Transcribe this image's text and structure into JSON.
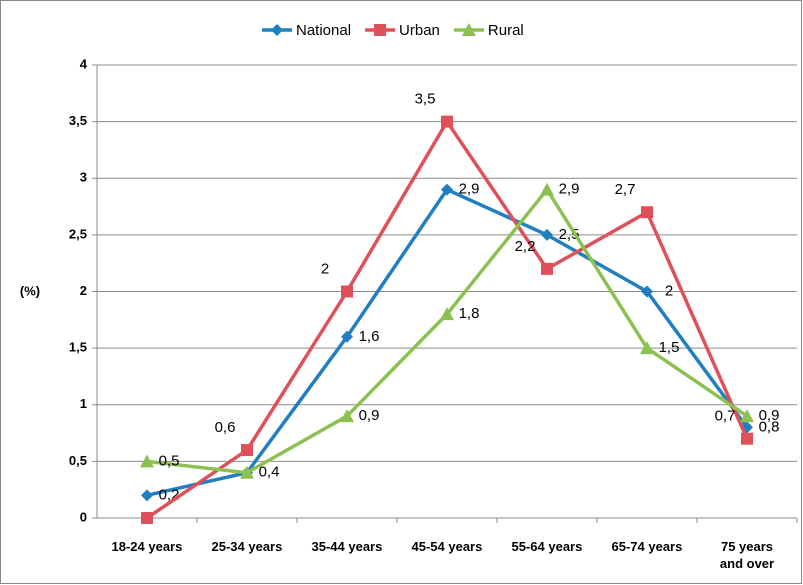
{
  "chart_data": {
    "type": "line",
    "y_label": "(%)",
    "categories": [
      "18-24 years",
      "25-34 years",
      "35-44 years",
      "45-54 years",
      "55-64 years",
      "65-74 years",
      "75 years and over"
    ],
    "series": [
      {
        "name": "National",
        "color": "#1f7fc0",
        "marker": "diamond",
        "values": [
          0.2,
          0.4,
          1.6,
          2.9,
          2.5,
          2,
          0.8
        ],
        "value_labels": [
          "0,2",
          "0,4",
          "1,6",
          "2,9",
          "2,5",
          "2",
          "0,8"
        ]
      },
      {
        "name": "Urban",
        "color": "#e0505a",
        "marker": "square",
        "values": [
          0,
          0.6,
          2,
          3.5,
          2.2,
          2.7,
          0.7
        ],
        "value_labels": [
          null,
          "0,6",
          "2",
          "3,5",
          "2,2",
          "2,7",
          "0,7"
        ]
      },
      {
        "name": "Rural",
        "color": "#8cc152",
        "marker": "triangle",
        "values": [
          0.5,
          0.4,
          0.9,
          1.8,
          2.9,
          1.5,
          0.9
        ],
        "value_labels": [
          "0,5",
          null,
          "0,9",
          "1,8",
          "2,9",
          "1,5",
          "0,9"
        ]
      }
    ],
    "ylim": [
      0,
      4
    ],
    "yticks": [
      0,
      {
        "value": 0.5,
        "label": "0,5"
      },
      1,
      {
        "value": 1.5,
        "label": "1,5"
      },
      2,
      {
        "value": 2.5,
        "label": "2,5"
      },
      3,
      {
        "value": 3.5,
        "label": "3,5"
      },
      4
    ],
    "grid": true,
    "legend": "top"
  }
}
